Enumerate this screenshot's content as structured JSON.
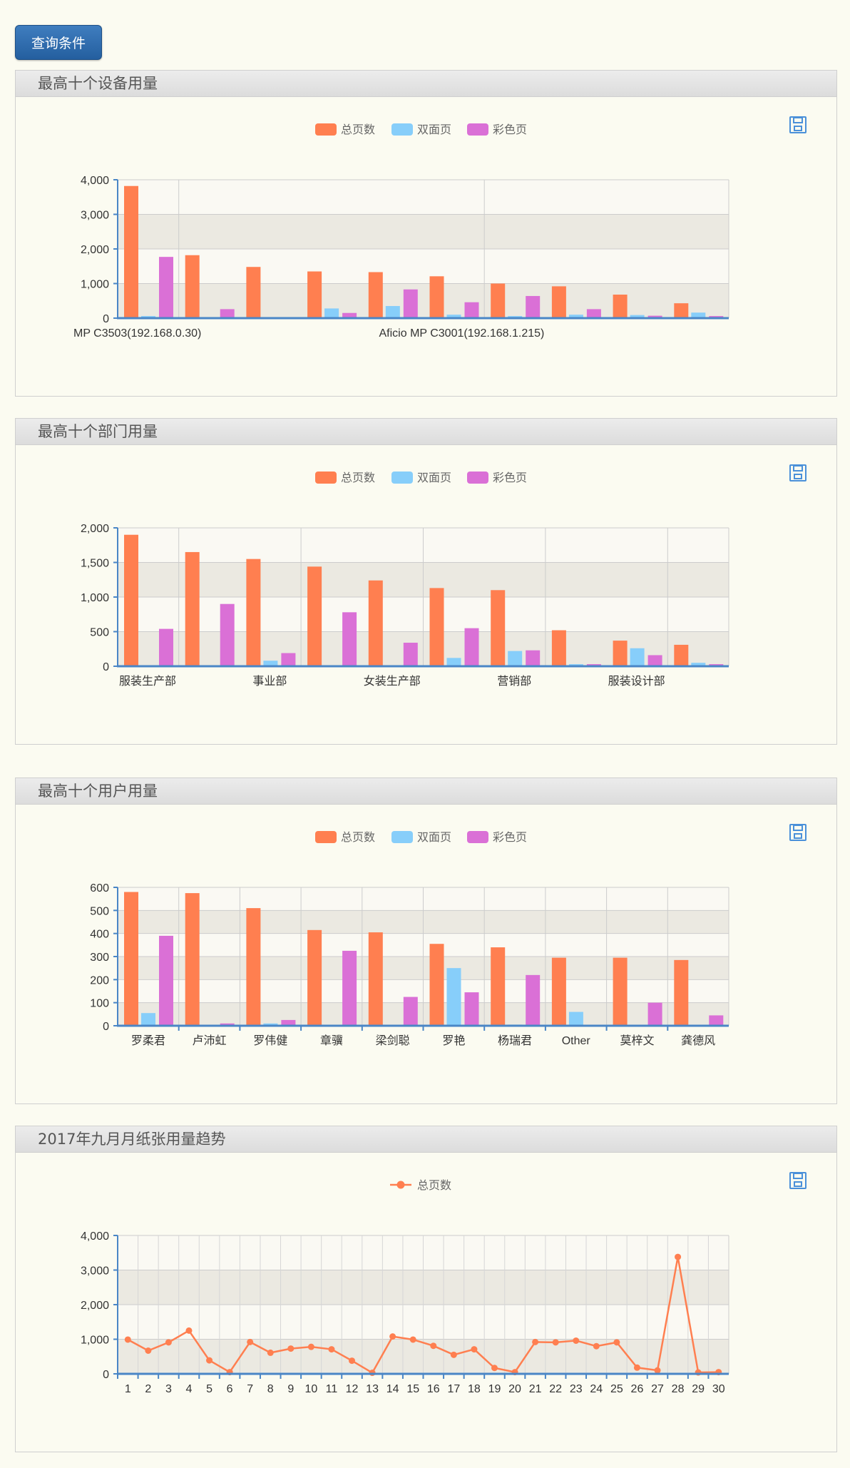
{
  "query_button": "查询条件",
  "legend_labels": {
    "total": "总页数",
    "duplex": "双面页",
    "color": "彩色页"
  },
  "colors": {
    "total": "#ff7f50",
    "duplex": "#87cefa",
    "color": "#da70d6",
    "axis": "#4a86c6"
  },
  "panels": [
    {
      "title": "最高十个设备用量"
    },
    {
      "title": "最高十个部门用量"
    },
    {
      "title": "最高十个用户用量"
    },
    {
      "title": "2017年九月月纸张用量趋势"
    }
  ],
  "chart_data": [
    {
      "type": "bar",
      "title": "最高十个设备用量",
      "categories": [
        "MP C3503(192.168.0.30)",
        "",
        "",
        "",
        "",
        "Aficio MP C3001(192.168.1.215)",
        "",
        "",
        "",
        ""
      ],
      "category_labels_visible": [
        0,
        5
      ],
      "series": [
        {
          "name": "总页数",
          "values": [
            3820,
            1820,
            1480,
            1350,
            1330,
            1210,
            1000,
            920,
            680,
            430
          ]
        },
        {
          "name": "双面页",
          "values": [
            60,
            20,
            10,
            280,
            350,
            100,
            60,
            100,
            90,
            160
          ]
        },
        {
          "name": "彩色页",
          "values": [
            1770,
            260,
            0,
            150,
            830,
            460,
            640,
            260,
            70,
            60
          ]
        }
      ],
      "ylim": [
        0,
        4000
      ],
      "yticks": [
        "0",
        "1,000",
        "2,000",
        "3,000",
        "4,000"
      ],
      "vertical_grid_after": [
        0,
        5
      ],
      "legend_position": "top"
    },
    {
      "type": "bar",
      "title": "最高十个部门用量",
      "categories": [
        "服装生产部",
        "",
        "事业部",
        "",
        "女装生产部",
        "",
        "营销部",
        "",
        "服装设计部",
        ""
      ],
      "category_labels_visible": [
        0,
        2,
        4,
        6,
        8
      ],
      "series": [
        {
          "name": "总页数",
          "values": [
            1900,
            1650,
            1550,
            1440,
            1240,
            1130,
            1100,
            520,
            370,
            310
          ]
        },
        {
          "name": "双面页",
          "values": [
            10,
            10,
            80,
            10,
            10,
            120,
            220,
            30,
            260,
            50
          ]
        },
        {
          "name": "彩色页",
          "values": [
            540,
            900,
            190,
            780,
            340,
            550,
            230,
            30,
            160,
            30
          ]
        }
      ],
      "ylim": [
        0,
        2000
      ],
      "yticks": [
        "0",
        "500",
        "1,000",
        "1,500",
        "2,000"
      ],
      "vertical_grid_after": [
        0,
        2,
        4,
        6,
        8
      ],
      "legend_position": "top"
    },
    {
      "type": "bar",
      "title": "最高十个用户用量",
      "categories": [
        "罗柔君",
        "卢沛虹",
        "罗伟健",
        "章骥",
        "梁剑聪",
        "罗艳",
        "杨瑞君",
        "Other",
        "莫梓文",
        "龚德风"
      ],
      "category_labels_visible": [
        0,
        1,
        2,
        3,
        4,
        5,
        6,
        7,
        8,
        9
      ],
      "series": [
        {
          "name": "总页数",
          "values": [
            580,
            575,
            510,
            415,
            405,
            355,
            340,
            295,
            295,
            285
          ]
        },
        {
          "name": "双面页",
          "values": [
            55,
            0,
            10,
            0,
            0,
            250,
            5,
            60,
            0,
            0
          ]
        },
        {
          "name": "彩色页",
          "values": [
            390,
            10,
            25,
            325,
            125,
            145,
            220,
            0,
            100,
            45
          ]
        }
      ],
      "ylim": [
        0,
        600
      ],
      "yticks": [
        "0",
        "100",
        "200",
        "300",
        "400",
        "500",
        "600"
      ],
      "vertical_grid_after": [
        0,
        1,
        2,
        3,
        4,
        5,
        6,
        7,
        8,
        9
      ],
      "legend_position": "top"
    },
    {
      "type": "line",
      "title": "2017年九月月纸张用量趋势",
      "x": [
        "1",
        "2",
        "3",
        "4",
        "5",
        "6",
        "7",
        "8",
        "9",
        "10",
        "11",
        "12",
        "13",
        "14",
        "15",
        "16",
        "17",
        "18",
        "19",
        "20",
        "21",
        "22",
        "23",
        "24",
        "25",
        "26",
        "27",
        "28",
        "29",
        "30"
      ],
      "series": [
        {
          "name": "总页数",
          "values": [
            990,
            670,
            910,
            1250,
            390,
            50,
            920,
            610,
            730,
            780,
            710,
            380,
            30,
            1080,
            990,
            810,
            550,
            710,
            170,
            50,
            920,
            910,
            960,
            800,
            910,
            180,
            100,
            3380,
            40,
            50
          ]
        }
      ],
      "ylim": [
        0,
        4000
      ],
      "yticks": [
        "0",
        "1,000",
        "2,000",
        "3,000",
        "4,000"
      ],
      "legend_position": "top"
    }
  ]
}
